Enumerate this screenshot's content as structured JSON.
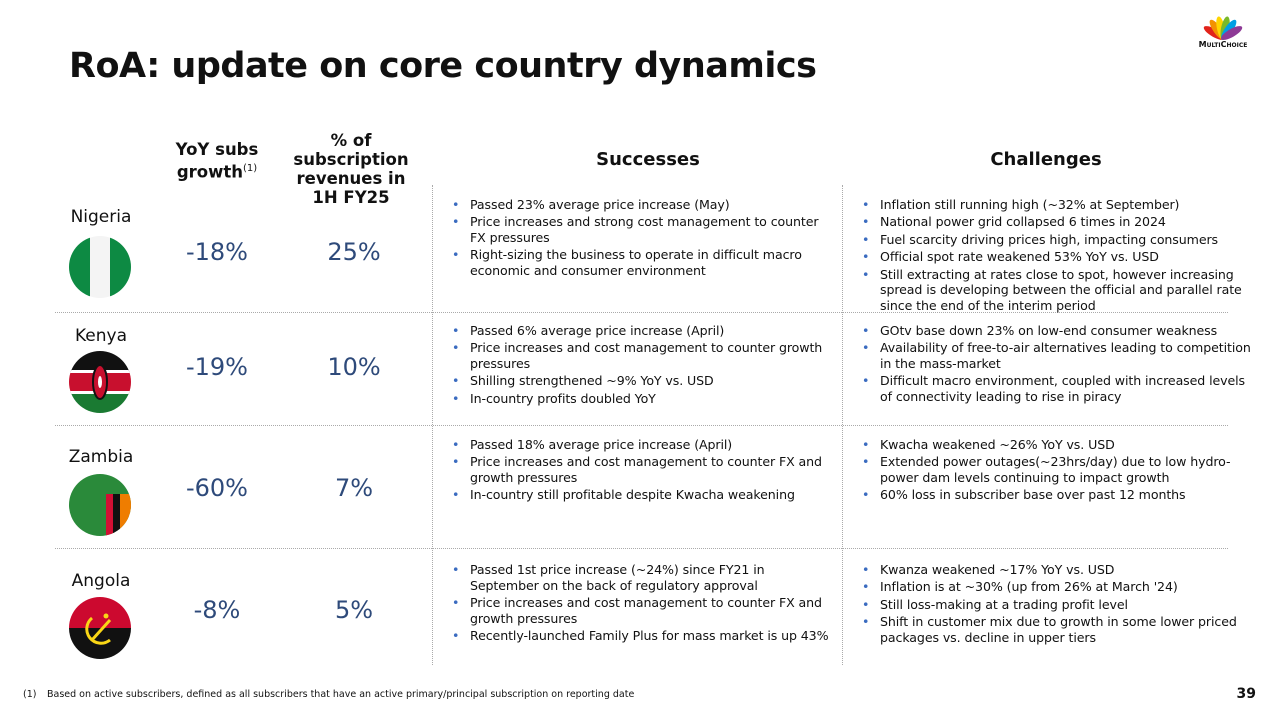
{
  "logo": "MultiChoice",
  "title": "RoA: update on core country dynamics",
  "headers": {
    "yoy": "YoY subs growth",
    "yoy_note": "(1)",
    "share": "% of subscription revenues in 1H FY25",
    "successes": "Successes",
    "challenges": "Challenges"
  },
  "rows": [
    {
      "country": "Nigeria",
      "yoy": "-18%",
      "share": "25%",
      "successes": [
        "Passed 23% average price increase (May)",
        "Price increases and strong cost management to counter FX pressures",
        "Right-sizing the business to operate in difficult macro economic and consumer environment"
      ],
      "challenges": [
        "Inflation still running high (~32% at September)",
        "National power grid collapsed 6 times in 2024",
        "Fuel scarcity driving prices high, impacting consumers",
        "Official spot rate weakened 53% YoY vs. USD",
        "Still extracting at rates close to spot, however increasing spread is developing between the official and parallel rate since the end of the interim period"
      ]
    },
    {
      "country": "Kenya",
      "yoy": "-19%",
      "share": "10%",
      "successes": [
        "Passed 6% average price increase (April)",
        "Price increases and cost management to counter growth pressures",
        "Shilling strengthened ~9% YoY vs. USD",
        "In-country profits doubled YoY"
      ],
      "challenges": [
        "GOtv base down 23% on low-end consumer weakness",
        "Availability of free-to-air alternatives leading to competition in the mass-market",
        "Difficult macro environment, coupled with increased levels of connectivity leading to rise in piracy"
      ]
    },
    {
      "country": "Zambia",
      "yoy": "-60%",
      "share": "7%",
      "successes": [
        "Passed 18% average price increase (April)",
        "Price increases and cost management to counter FX and growth pressures",
        "In-country still profitable despite Kwacha weakening"
      ],
      "challenges": [
        "Kwacha weakened ~26% YoY vs. USD",
        "Extended power outages(~23hrs/day) due to low hydro-power dam levels continuing to impact growth",
        "60% loss in subscriber base over past 12 months"
      ]
    },
    {
      "country": "Angola",
      "yoy": "-8%",
      "share": "5%",
      "successes": [
        "Passed 1st price increase (~24%) since FY21 in September on the back of regulatory approval",
        "Price increases and cost management to counter FX and growth pressures",
        "Recently-launched Family Plus for mass market is up 43%"
      ],
      "challenges": [
        "Kwanza weakened ~17% YoY vs. USD",
        "Inflation is at ~30% (up from 26% at March '24)",
        "Still loss-making at a trading profit level",
        "Shift in customer mix due to growth in some lower priced packages vs. decline in upper tiers"
      ]
    }
  ],
  "footnote": {
    "marker": "(1)",
    "text": "Based on active subscribers, defined as all subscribers that have an active primary/principal subscription on reporting date"
  },
  "page_number": "39"
}
